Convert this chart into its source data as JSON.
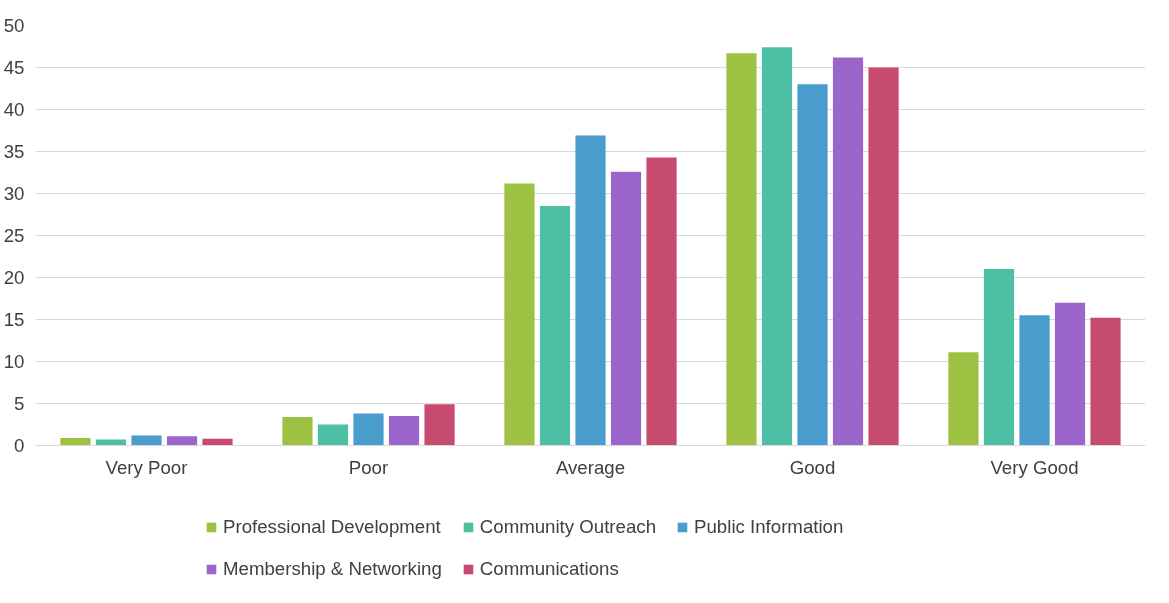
{
  "chart_data": {
    "type": "bar",
    "categories": [
      "Very Poor",
      "Poor",
      "Average",
      "Good",
      "Very Good"
    ],
    "series": [
      {
        "name": "Professional Development",
        "color": "#9dc243",
        "values": [
          0.9,
          3.4,
          31.2,
          46.7,
          11.1
        ]
      },
      {
        "name": "Community Outreach",
        "color": "#4dbfa4",
        "values": [
          0.7,
          2.5,
          28.5,
          47.4,
          21.0
        ]
      },
      {
        "name": "Public Information",
        "color": "#4a9ccc",
        "values": [
          1.2,
          3.8,
          36.9,
          43.0,
          15.5
        ]
      },
      {
        "name": "Membership & Networking",
        "color": "#9b66cc",
        "values": [
          1.1,
          3.5,
          32.6,
          46.2,
          17.0
        ]
      },
      {
        "name": "Communications",
        "color": "#c74b6e",
        "values": [
          0.8,
          4.9,
          34.3,
          45.0,
          15.2
        ]
      }
    ],
    "ylim": [
      0,
      50
    ],
    "yticks": [
      0,
      5,
      10,
      15,
      20,
      25,
      30,
      35,
      40,
      45,
      50
    ],
    "grid": "y",
    "legend": "bottom"
  }
}
